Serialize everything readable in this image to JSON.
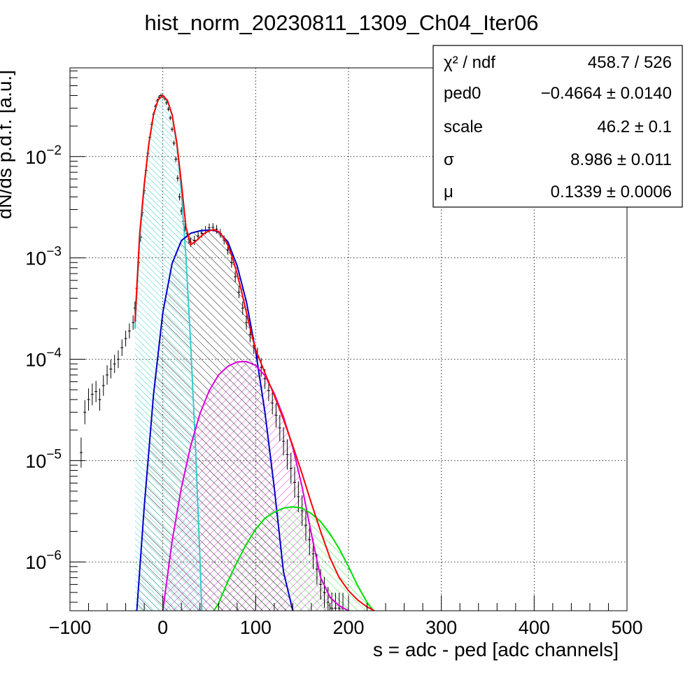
{
  "chart_data": {
    "type": "line",
    "title": "hist_norm_20230811_1309_Ch04_Iter06",
    "xlabel": "s = adc - ped [adc channels]",
    "ylabel": "dN/ds p.d.f. [a.u.]",
    "xlim": [
      -100,
      500
    ],
    "ylim": [
      3.3e-07,
      0.075
    ],
    "yscale": "log",
    "grid": true,
    "x_ticks": [
      {
        "value": -100,
        "label": "−100"
      },
      {
        "value": 0,
        "label": "0"
      },
      {
        "value": 100,
        "label": "100"
      },
      {
        "value": 200,
        "label": "200"
      },
      {
        "value": 300,
        "label": "300"
      },
      {
        "value": 400,
        "label": "400"
      },
      {
        "value": 500,
        "label": "500"
      }
    ],
    "y_ticks": [
      {
        "value": 0.01,
        "base": "10",
        "exp": "−2"
      },
      {
        "value": 0.001,
        "base": "10",
        "exp": "−3"
      },
      {
        "value": 0.0001,
        "base": "10",
        "exp": "−4"
      },
      {
        "value": 1e-05,
        "base": "10",
        "exp": "−5"
      },
      {
        "value": 1e-06,
        "base": "10",
        "exp": "−6"
      }
    ],
    "stats": [
      {
        "name": "χ² / ndf",
        "value": "458.7 / 526"
      },
      {
        "name": "ped0",
        "value": "−0.4664 ± 0.0140"
      },
      {
        "name": "scale",
        "value": "46.2 ± 0.1"
      },
      {
        "name": "σ",
        "value": "8.986 ± 0.011"
      },
      {
        "name": "μ",
        "value": "0.1339 ± 0.0006"
      }
    ],
    "colors": {
      "data": "#000000",
      "total_fit": "#ff0000",
      "pedestal": "#33cccc",
      "one_pe": "#0000cc",
      "two_pe": "#dd00dd",
      "three_pe": "#00dd00"
    },
    "series": [
      {
        "key": "data",
        "x": [
          -88,
          -84,
          -80,
          -76,
          -72,
          -68,
          -64,
          -60,
          -56,
          -52,
          -48,
          -44,
          -40,
          -36,
          -32,
          -30,
          -28,
          -26,
          -24,
          -22,
          -20,
          -18,
          -16,
          -14,
          -12,
          -10,
          -8,
          -6,
          -4,
          -2,
          0,
          2,
          4,
          6,
          8,
          10,
          12,
          14,
          16,
          18,
          20,
          22,
          24,
          26,
          28,
          30,
          34,
          38,
          42,
          46,
          50,
          54,
          58,
          62,
          66,
          70,
          74,
          78,
          82,
          86,
          90,
          94,
          98,
          102,
          106,
          110,
          114,
          118,
          122,
          126,
          130,
          134,
          138,
          142,
          146,
          150,
          154,
          158,
          162,
          166,
          170,
          174,
          178,
          182,
          186,
          190,
          194
        ],
        "y": [
          1.2e-05,
          3e-05,
          4e-05,
          4.5e-05,
          4.8e-05,
          4e-05,
          5.5e-05,
          7e-05,
          8e-05,
          9e-05,
          0.0001,
          0.00013,
          0.00016,
          0.00019,
          0.00023,
          0.00032,
          0.0005,
          0.0009,
          0.0016,
          0.0028,
          0.0046,
          0.0073,
          0.0108,
          0.0155,
          0.0208,
          0.0262,
          0.0312,
          0.0355,
          0.0385,
          0.04,
          0.0395,
          0.0374,
          0.0339,
          0.0293,
          0.024,
          0.0186,
          0.0136,
          0.0094,
          0.0061,
          0.004,
          0.0029,
          0.0023,
          0.002,
          0.00175,
          0.00153,
          0.00143,
          0.00149,
          0.00165,
          0.00175,
          0.00188,
          0.00198,
          0.002,
          0.00192,
          0.00175,
          0.0015,
          0.0012,
          0.0009,
          0.00065,
          0.00046,
          0.00032,
          0.00023,
          0.000175,
          0.000136,
          0.000107,
          8.3e-05,
          6.4e-05,
          4.9e-05,
          3.7e-05,
          2.8e-05,
          2.1e-05,
          1.55e-05,
          1.15e-05,
          8.4e-06,
          6.1e-06,
          4.4e-06,
          3.2e-06,
          2.3e-06,
          1.65e-06,
          1.2e-06,
          8.5e-07,
          6e-07,
          5e-07,
          4e-07,
          3.5e-07,
          3.5e-07,
          3.5e-07,
          3.5e-07
        ]
      },
      {
        "key": "total_fit",
        "x": [
          -30,
          -25,
          -20,
          -15,
          -10,
          -5,
          0,
          5,
          10,
          15,
          20,
          25,
          30,
          35,
          40,
          45,
          50,
          55,
          60,
          65,
          70,
          75,
          80,
          85,
          90,
          95,
          100,
          110,
          120,
          130,
          140,
          150,
          160,
          170,
          180,
          190,
          200,
          210,
          220,
          228
        ],
        "y": [
          0.000235,
          0.0017,
          0.0053,
          0.0136,
          0.026,
          0.0365,
          0.04,
          0.0358,
          0.026,
          0.0138,
          0.0055,
          0.002,
          0.00135,
          0.00145,
          0.0016,
          0.00175,
          0.00185,
          0.0019,
          0.00182,
          0.00162,
          0.00133,
          0.001,
          0.0007,
          0.00046,
          0.00029,
          0.000185,
          0.000125,
          7.3e-05,
          4.4e-05,
          2.55e-05,
          1.4e-05,
          7.4e-06,
          3.8e-06,
          2e-06,
          1.1e-06,
          7e-07,
          5.2e-07,
          4.2e-07,
          3.6e-07,
          3.3e-07
        ]
      },
      {
        "key": "pedestal",
        "x": [
          -30,
          -25,
          -20,
          -15,
          -10,
          -5,
          0,
          5,
          10,
          15,
          20,
          25,
          30,
          35,
          40,
          42
        ],
        "y": [
          0.0002,
          0.0015,
          0.0051,
          0.0134,
          0.0258,
          0.0362,
          0.0395,
          0.0355,
          0.0255,
          0.0132,
          0.0045,
          0.001,
          0.00014,
          1.5e-05,
          1.1e-06,
          3.3e-07
        ]
      },
      {
        "key": "one_pe",
        "x": [
          -28,
          -20,
          -10,
          0,
          10,
          20,
          30,
          40,
          50,
          55,
          60,
          70,
          80,
          90,
          100,
          110,
          120,
          130,
          140
        ],
        "y": [
          3.3e-07,
          3.5e-06,
          4.5e-05,
          0.00029,
          0.00088,
          0.00148,
          0.00175,
          0.00185,
          0.00188,
          0.00187,
          0.0018,
          0.00145,
          0.00084,
          0.00037,
          0.00012,
          3e-05,
          5.4e-06,
          8e-07,
          3.3e-07
        ]
      },
      {
        "key": "two_pe",
        "x": [
          0,
          10,
          20,
          30,
          40,
          50,
          60,
          70,
          80,
          90,
          100,
          110,
          120,
          130,
          140,
          150,
          160,
          170,
          180,
          190,
          200
        ],
        "y": [
          3.3e-07,
          1.6e-06,
          5.4e-06,
          1.4e-05,
          2.9e-05,
          4.9e-05,
          7e-05,
          8.5e-05,
          9.4e-05,
          9.5e-05,
          8.7e-05,
          6.9e-05,
          4.6e-05,
          2.7e-05,
          1.35e-05,
          5.5e-06,
          1.9e-06,
          7e-07,
          4.5e-07,
          3.7e-07,
          3.3e-07
        ]
      },
      {
        "key": "three_pe",
        "x": [
          55,
          60,
          70,
          80,
          90,
          100,
          110,
          120,
          130,
          140,
          150,
          160,
          170,
          180,
          190,
          200,
          210,
          220,
          227
        ],
        "y": [
          3.3e-07,
          3.9e-07,
          6.4e-07,
          1e-06,
          1.5e-06,
          2.1e-06,
          2.7e-06,
          3.1e-06,
          3.4e-06,
          3.5e-06,
          3.4e-06,
          3e-06,
          2.5e-06,
          1.9e-06,
          1.35e-06,
          9e-07,
          5.8e-07,
          4e-07,
          3.3e-07
        ]
      }
    ]
  }
}
